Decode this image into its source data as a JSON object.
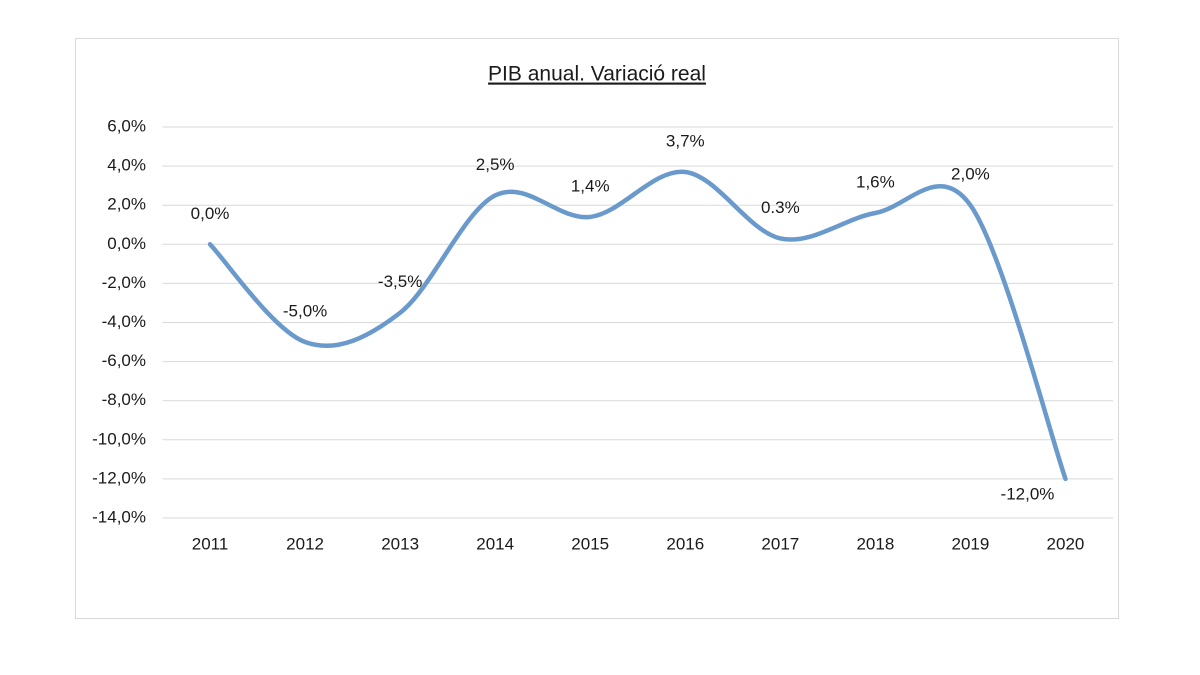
{
  "chart_data": {
    "type": "line",
    "title": "PIB anual. Variació real",
    "categories": [
      "2011",
      "2012",
      "2013",
      "2014",
      "2015",
      "2016",
      "2017",
      "2018",
      "2019",
      "2020"
    ],
    "series": [
      {
        "name": "PIB",
        "color": "#6a9acb",
        "values": [
          0.0,
          -5.0,
          -3.5,
          2.5,
          1.4,
          3.7,
          0.3,
          1.6,
          2.0,
          -12.0
        ],
        "value_labels": [
          "0,0%",
          "-5,0%",
          "-3,5%",
          "2,5%",
          "1,4%",
          "3,7%",
          "0.3%",
          "1,6%",
          "2,0%",
          "-12,0%"
        ]
      }
    ],
    "ylim": [
      -14,
      6
    ],
    "yticks": [
      {
        "value": -14,
        "label": "-14,0%"
      },
      {
        "value": -12,
        "label": "-12,0%"
      },
      {
        "value": -10,
        "label": "-10,0%"
      },
      {
        "value": -8,
        "label": "-8,0%"
      },
      {
        "value": -6,
        "label": "-6,0%"
      },
      {
        "value": -4,
        "label": "-4,0%"
      },
      {
        "value": -2,
        "label": "-2,0%"
      },
      {
        "value": 0,
        "label": "0,0%"
      },
      {
        "value": 2,
        "label": "2,0%"
      },
      {
        "value": 4,
        "label": "4,0%"
      },
      {
        "value": 6,
        "label": "6,0%"
      }
    ],
    "grid": true,
    "smooth": true
  }
}
